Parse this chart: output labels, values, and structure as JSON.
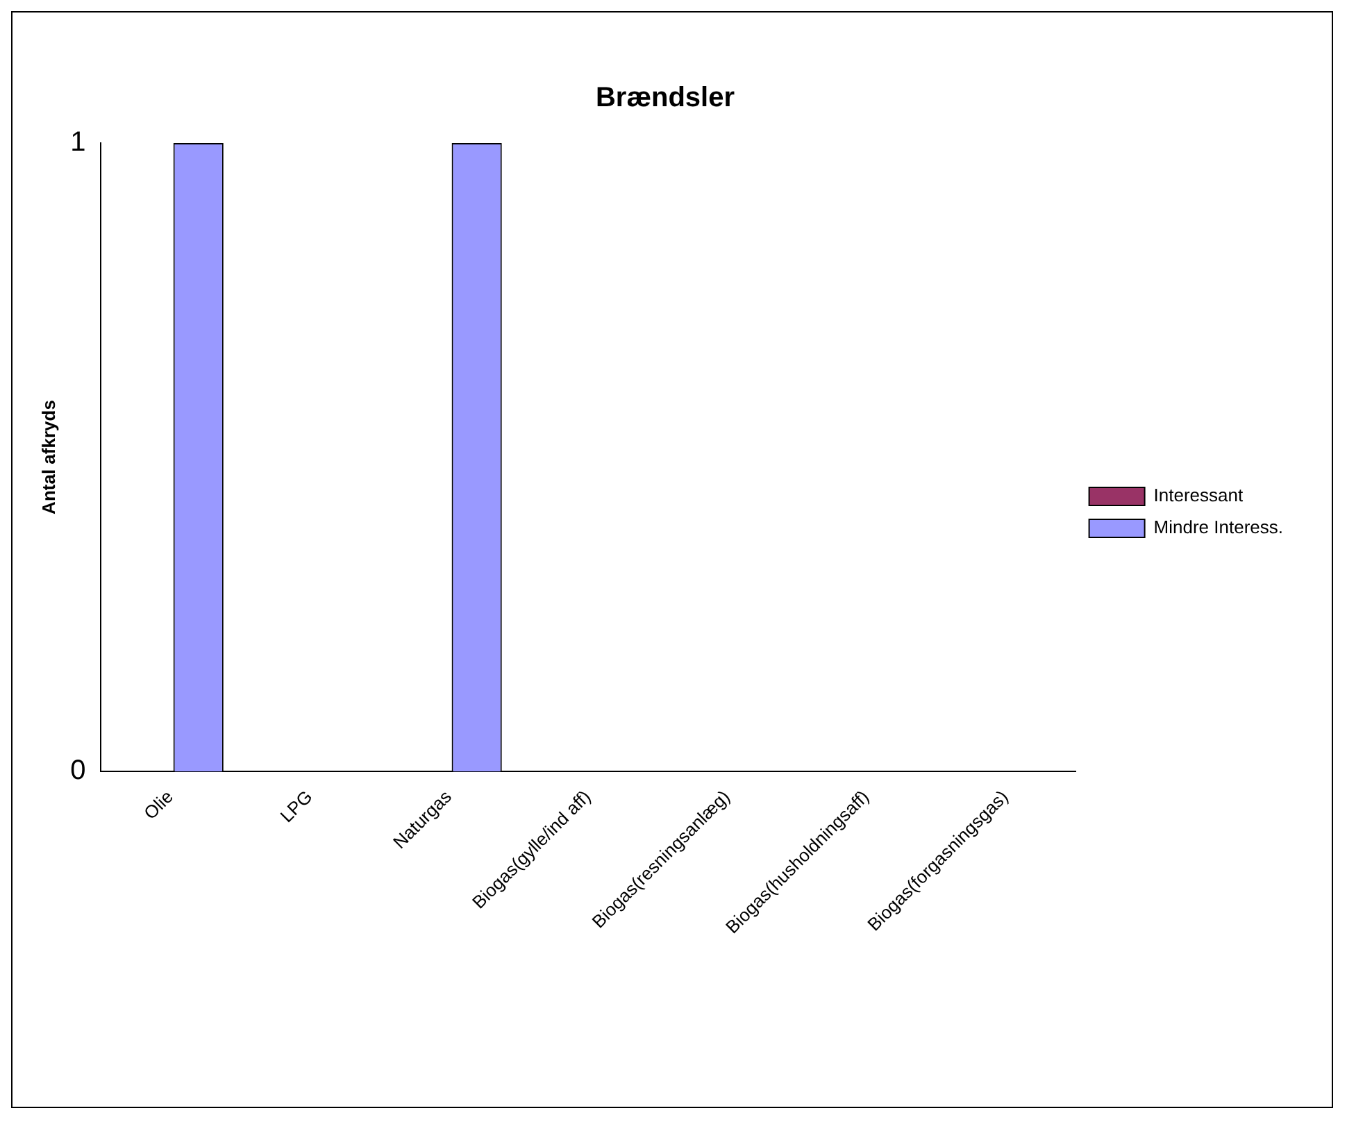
{
  "chart_data": {
    "type": "bar",
    "title": "Brændsler",
    "ylabel": "Antal afkryds",
    "categories": [
      "Olie",
      "LPG",
      "Naturgas",
      "Biogas(gylle/ind aff)",
      "Biogas(resningsanlæg)",
      "Biogas(husholdningsaff)",
      "Biogas(forgasningsgas)"
    ],
    "series": [
      {
        "name": "Interessant",
        "color": "#993366",
        "values": [
          0,
          0,
          0,
          0,
          0,
          0,
          0
        ]
      },
      {
        "name": "Mindre Interess.",
        "color": "#9999ff",
        "values": [
          1,
          0,
          1,
          0,
          0,
          0,
          0
        ]
      }
    ],
    "ylim": [
      0,
      1
    ],
    "yticks": [
      0,
      1
    ],
    "grid": false,
    "legend": "right"
  }
}
